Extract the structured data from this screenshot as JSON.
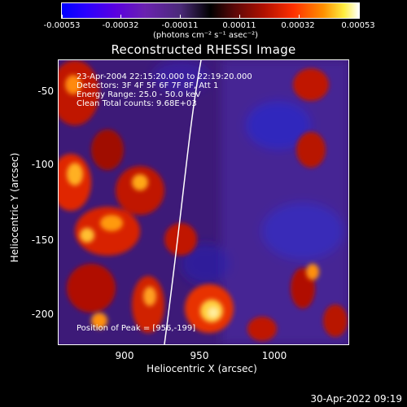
{
  "colorbar": {
    "ticks": [
      "-0.00053",
      "-0.00032",
      "-0.00011",
      "0.00011",
      "0.00032",
      "0.00053"
    ],
    "units": "(photons cm⁻² s⁻¹ asec⁻²)"
  },
  "plot": {
    "title": "Reconstructed RHESSI Image",
    "xlabel": "Heliocentric X (arcsec)",
    "ylabel": "Heliocentric Y (arcsec)",
    "xticks": [
      "900",
      "950",
      "1000"
    ],
    "yticks": [
      "-50",
      "-100",
      "-150",
      "-200"
    ],
    "info": {
      "time": "23-Apr-2004 22:15:20.000 to 22:19:20.000",
      "detectors": "Detectors: 3F 4F 5F 6F 7F 8F, Att 1",
      "energy": "Energy Range: 25.0 - 50.0 keV",
      "clean": "Clean    Total counts: 9.68E+03"
    },
    "peak": "Position of Peak = [956,-199]"
  },
  "timestamp": "30-Apr-2022 09:19"
}
